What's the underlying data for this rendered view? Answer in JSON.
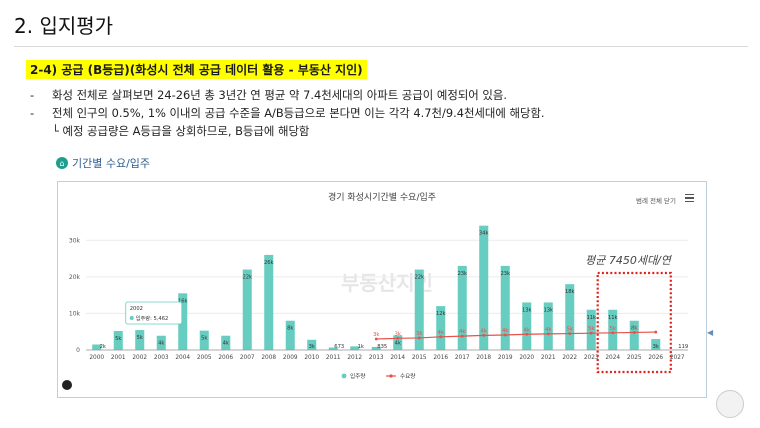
{
  "page": {
    "title": "2. 입지평가",
    "section_heading": "2-4) 공급 (B등급)(화성시 전체 공급 데이터 활용 - 부동산 지인)",
    "bullets": [
      "화성 전체로 살펴보면 24-26년 총 3년간 연 평균 약 7.4천세대의 아파트 공급이 예정되어 있음.",
      "전체 인구의 0.5%, 1% 이내의 공급 수준을 A/B등급으로 본다면 이는 각각 4.7천/9.4천세대에 해당함."
    ],
    "bullet_marker": "-",
    "sub_note": "└ 예정 공급량은 A등급을 상회하므로, B등급에 해당함",
    "chart_caption": "기간별 수요/입주"
  },
  "chart_data": {
    "type": "bar",
    "title": "경기 화성시기간별 수요/입주",
    "menu_label": "범례 전체 닫기",
    "watermark": "부동산지인",
    "annotation": "평균 7450세대/연",
    "categories": [
      "2000",
      "2001",
      "2002",
      "2003",
      "2004",
      "2005",
      "2006",
      "2007",
      "2008",
      "2009",
      "2010",
      "2011",
      "2012",
      "2013",
      "2014",
      "2015",
      "2016",
      "2017",
      "2018",
      "2019",
      "2020",
      "2021",
      "2022",
      "2023",
      "2024",
      "2025",
      "2026",
      "2027"
    ],
    "ylim": [
      0,
      35000
    ],
    "yticks": [
      "0",
      "10k",
      "20k",
      "30k"
    ],
    "ytick_values": [
      0,
      10000,
      20000,
      30000
    ],
    "series": [
      {
        "name": "입주량",
        "color": "#66cdc0",
        "values": [
          1500,
          5200,
          5462,
          3900,
          15500,
          5300,
          3900,
          22000,
          26000,
          8000,
          2800,
          673,
          1000,
          835,
          4000,
          22000,
          12000,
          23000,
          34000,
          23000,
          13000,
          13000,
          18000,
          11000,
          11000,
          8000,
          3000,
          119
        ],
        "labels": [
          "2k",
          "5k",
          "5k",
          "4k",
          "16k",
          "5k",
          "4k",
          "22k",
          "26k",
          "8k",
          "3k",
          "673",
          "1k",
          "835",
          "4k",
          "22k",
          "12k",
          "23k",
          "34k",
          "23k",
          "13k",
          "13k",
          "18k",
          "11k",
          "11k",
          "8k",
          "3k",
          "119"
        ]
      },
      {
        "name": "수요량",
        "color": "#e8504a",
        "start_index": 13,
        "values": [
          null,
          null,
          null,
          null,
          null,
          null,
          null,
          null,
          null,
          null,
          null,
          null,
          null,
          3000,
          3200,
          3300,
          3600,
          3800,
          4000,
          4100,
          4300,
          4400,
          4500,
          4600,
          4700,
          4800,
          4900,
          null
        ],
        "labels": [
          "",
          "",
          "",
          "",
          "",
          "",
          "",
          "",
          "",
          "",
          "",
          "",
          "",
          "3k",
          "3k",
          "3k",
          "4k",
          "4k",
          "4k",
          "4k",
          "4k",
          "4k",
          "5k",
          "5k",
          "5k",
          "5k",
          "",
          ""
        ]
      }
    ],
    "tooltip": {
      "category": "2002",
      "series": "입주량",
      "value_text": "5,462"
    },
    "highlight_range": [
      "2024",
      "2026"
    ],
    "legend_position": "bottom-center",
    "grid": true
  }
}
